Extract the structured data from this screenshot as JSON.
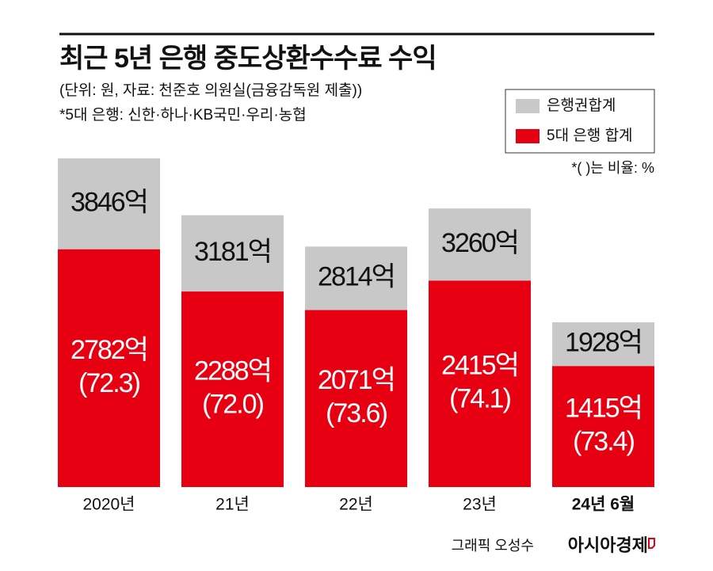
{
  "chart_data": {
    "type": "bar",
    "title": "최근 5년 은행 중도상환수수료 수익",
    "subtitle": [
      "(단위: 원, 자료: 천준호 의원실(금융감독원 제출))",
      "*5대 은행: 신한·하나·KB국민·우리·농협"
    ],
    "note": "*( )는 비율: %",
    "credit": "그래픽 오성수",
    "source": "아시아경제",
    "categories": [
      "2020년",
      "21년",
      "22년",
      "23년",
      "24년 6월"
    ],
    "series": [
      {
        "name": "은행권합계",
        "color": "#c8c8c8",
        "values": [
          3846,
          3181,
          2814,
          3260,
          1928
        ],
        "value_labels": [
          "3846억",
          "3181억",
          "2814억",
          "3260억",
          "1928억"
        ]
      },
      {
        "name": "5대 은행 합계",
        "color": "#e60012",
        "values": [
          2782,
          2288,
          2071,
          2415,
          1415
        ],
        "value_labels": [
          "2782억",
          "2288억",
          "2071억",
          "2415억",
          "1415억"
        ]
      }
    ],
    "ratios": {
      "values": [
        72.3,
        72.0,
        73.6,
        74.1,
        73.4
      ],
      "value_labels": [
        "(72.3)",
        "(72.0)",
        "(73.6)",
        "(74.1)",
        "(73.4)"
      ]
    },
    "legend": "upper right"
  }
}
